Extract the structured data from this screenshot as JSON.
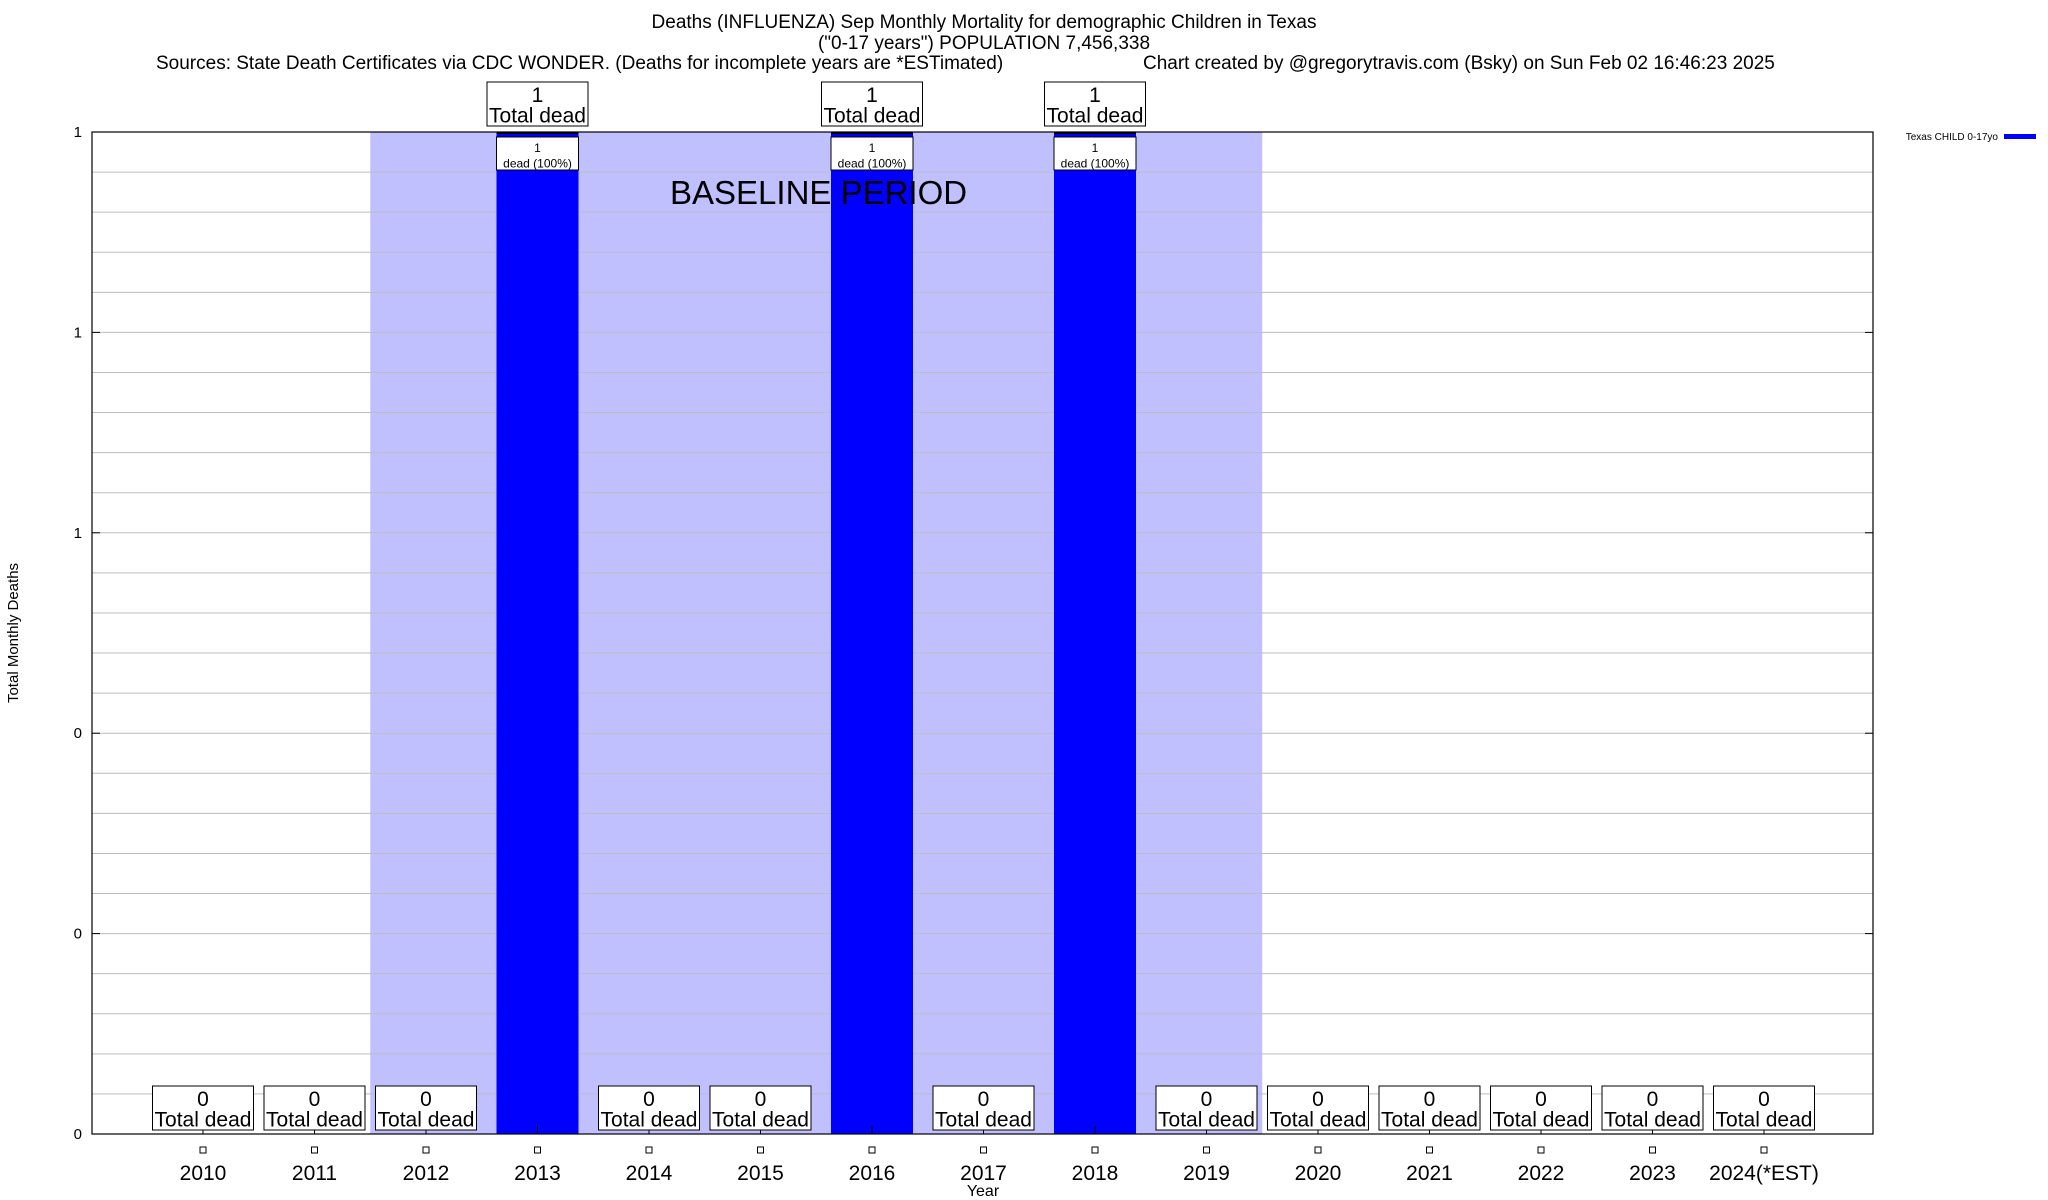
{
  "header": {
    "title": "Deaths (INFLUENZA) Sep Monthly Mortality for demographic Children in Texas",
    "subtitle": "(\"0-17 years\") POPULATION 7,456,338",
    "sources": "Sources: State Death Certificates via CDC WONDER. (Deaths for incomplete years are *ESTimated)",
    "credit": "Chart created by @gregorytravis.com (Bsky) on Sun Feb 02 16:46:23 2025"
  },
  "chart_data": {
    "type": "bar",
    "title": "Deaths (INFLUENZA) Sep Monthly Mortality for demographic Children in Texas",
    "xlabel": "Year",
    "ylabel": "Total Monthly Deaths",
    "categories": [
      "2010",
      "2011",
      "2012",
      "2013",
      "2014",
      "2015",
      "2016",
      "2017",
      "2018",
      "2019",
      "2020",
      "2021",
      "2022",
      "2023",
      "2024(*EST)"
    ],
    "series": [
      {
        "name": "Texas CHILD 0-17yo",
        "values": [
          0,
          0,
          0,
          1,
          0,
          0,
          1,
          0,
          1,
          0,
          0,
          0,
          0,
          0,
          0
        ],
        "color": "#0000ff"
      }
    ],
    "total_labels": [
      "0\nTotal dead",
      "0\nTotal dead",
      "0\nTotal dead",
      "1\nTotal dead",
      "0\nTotal dead",
      "0\nTotal dead",
      "1\nTotal dead",
      "0\nTotal dead",
      "1\nTotal dead",
      "0\nTotal dead",
      "0\nTotal dead",
      "0\nTotal dead",
      "0\nTotal dead",
      "0\nTotal dead",
      "0\nTotal dead"
    ],
    "bar_labels": [
      "1\ndead (100%)",
      "1\ndead (100%)",
      "1\ndead (100%)"
    ],
    "ylim": [
      0,
      1
    ],
    "y_tick_labels": [
      "0",
      "0",
      "0",
      "1",
      "1",
      "1"
    ],
    "baseline": {
      "label": "BASELINE PERIOD",
      "from": "2012",
      "to": "2019",
      "color": "#c0c0ff"
    },
    "grid": true,
    "legend_position": "top-right"
  }
}
